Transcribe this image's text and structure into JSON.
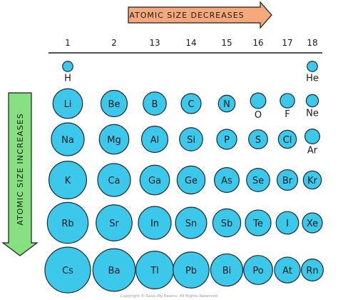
{
  "arrows": {
    "horizontal_label": "ATOMIC SIZE  DECREASES",
    "vertical_label": "ATOMIC  SIZE  INCREASES",
    "horizontal_color": "#f5a97a",
    "vertical_color": "#86e07f"
  },
  "groups": [
    "1",
    "2",
    "13",
    "14",
    "15",
    "16",
    "17",
    "18"
  ],
  "elements": [
    {
      "symbol": "H",
      "group": 0,
      "period": 0,
      "size": 1
    },
    {
      "symbol": "He",
      "group": 7,
      "period": 0,
      "size": 1
    },
    {
      "symbol": "Li",
      "group": 0,
      "period": 1,
      "size": 7
    },
    {
      "symbol": "Be",
      "group": 1,
      "period": 1,
      "size": 6
    },
    {
      "symbol": "B",
      "group": 2,
      "period": 1,
      "size": 5
    },
    {
      "symbol": "C",
      "group": 3,
      "period": 1,
      "size": 4
    },
    {
      "symbol": "N",
      "group": 4,
      "period": 1,
      "size": 3
    },
    {
      "symbol": "O",
      "group": 5,
      "period": 1,
      "size": 2.6
    },
    {
      "symbol": "F",
      "group": 6,
      "period": 1,
      "size": 2.3
    },
    {
      "symbol": "Ne",
      "group": 7,
      "period": 1,
      "size": 1.6
    },
    {
      "symbol": "Na",
      "group": 0,
      "period": 2,
      "size": 8
    },
    {
      "symbol": "Mg",
      "group": 1,
      "period": 2,
      "size": 7
    },
    {
      "symbol": "Al",
      "group": 2,
      "period": 2,
      "size": 6
    },
    {
      "symbol": "Si",
      "group": 3,
      "period": 2,
      "size": 5
    },
    {
      "symbol": "P",
      "group": 4,
      "period": 2,
      "size": 4
    },
    {
      "symbol": "S",
      "group": 5,
      "period": 2,
      "size": 3.7
    },
    {
      "symbol": "Cl",
      "group": 6,
      "period": 2,
      "size": 3.4
    },
    {
      "symbol": "Ar",
      "group": 7,
      "period": 2,
      "size": 2.4
    },
    {
      "symbol": "K",
      "group": 0,
      "period": 3,
      "size": 9.5
    },
    {
      "symbol": "Ca",
      "group": 1,
      "period": 3,
      "size": 8
    },
    {
      "symbol": "Ga",
      "group": 2,
      "period": 3,
      "size": 7
    },
    {
      "symbol": "Ge",
      "group": 3,
      "period": 3,
      "size": 6.5
    },
    {
      "symbol": "As",
      "group": 4,
      "period": 3,
      "size": 5.5
    },
    {
      "symbol": "Se",
      "group": 5,
      "period": 3,
      "size": 5
    },
    {
      "symbol": "Br",
      "group": 6,
      "period": 3,
      "size": 4.2
    },
    {
      "symbol": "Kr",
      "group": 7,
      "period": 3,
      "size": 3.4
    },
    {
      "symbol": "Rb",
      "group": 0,
      "period": 4,
      "size": 10.5
    },
    {
      "symbol": "Sr",
      "group": 1,
      "period": 4,
      "size": 9
    },
    {
      "symbol": "In",
      "group": 2,
      "period": 4,
      "size": 8
    },
    {
      "symbol": "Sn",
      "group": 3,
      "period": 4,
      "size": 7.5
    },
    {
      "symbol": "Sb",
      "group": 4,
      "period": 4,
      "size": 6.5
    },
    {
      "symbol": "Te",
      "group": 5,
      "period": 4,
      "size": 5.8
    },
    {
      "symbol": "I",
      "group": 6,
      "period": 4,
      "size": 4.8
    },
    {
      "symbol": "Xe",
      "group": 7,
      "period": 4,
      "size": 4
    },
    {
      "symbol": "Cs",
      "group": 0,
      "period": 5,
      "size": 12
    },
    {
      "symbol": "Ba",
      "group": 1,
      "period": 5,
      "size": 11
    },
    {
      "symbol": "Tl",
      "group": 2,
      "period": 5,
      "size": 9.5
    },
    {
      "symbol": "Pb",
      "group": 3,
      "period": 5,
      "size": 9
    },
    {
      "symbol": "Bi",
      "group": 4,
      "period": 5,
      "size": 7.8
    },
    {
      "symbol": "Po",
      "group": 5,
      "period": 5,
      "size": 6.8
    },
    {
      "symbol": "At",
      "group": 6,
      "period": 5,
      "size": 5.8
    },
    {
      "symbol": "Rn",
      "group": 7,
      "period": 5,
      "size": 4.6
    }
  ],
  "copyright": "Copyright © Save My Exams. All Rights Reserved",
  "atom_color": "#3cc8ea"
}
